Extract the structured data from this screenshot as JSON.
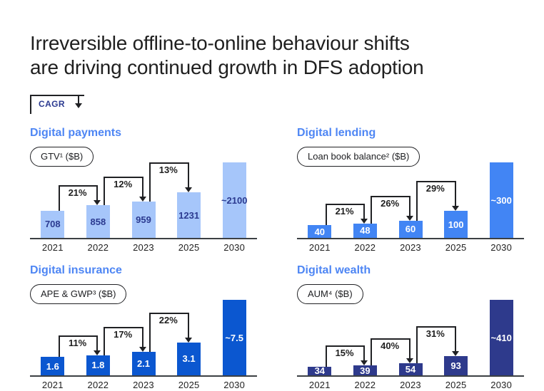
{
  "title": {
    "line1": "Irreversible offline-to-online behaviour shifts",
    "line2": "are driving continued growth in DFS adoption"
  },
  "legend": {
    "label": "CAGR"
  },
  "colors": {
    "header_blue": "#4E86F4",
    "payments_bar": "#A6C6FA",
    "payments_value_text": "#2B3A90",
    "lending_bar": "#4285F4",
    "insurance_bar": "#0B57D0",
    "wealth_bar": "#2E3A8C",
    "connector": "#202124",
    "axis": "#3C4043"
  },
  "chart_data": [
    {
      "type": "bar",
      "title": "Digital payments",
      "metric_label": "GTV¹ ($B)",
      "categories": [
        "2021",
        "2022",
        "2023",
        "2025",
        "2030"
      ],
      "values": [
        708,
        858,
        959,
        1231,
        2100
      ],
      "value_labels": [
        "708",
        "858",
        "959",
        "1231",
        "~2100"
      ],
      "cagr_labels": [
        "21%",
        "12%",
        "13%"
      ],
      "bar_color": "#A6C6FA",
      "value_label_color": "#2B3A90",
      "unit": "$B"
    },
    {
      "type": "bar",
      "title": "Digital lending",
      "metric_label": "Loan book balance² ($B)",
      "categories": [
        "2021",
        "2022",
        "2023",
        "2025",
        "2030"
      ],
      "values": [
        40,
        48,
        60,
        100,
        300
      ],
      "value_labels": [
        "40",
        "48",
        "60",
        "100",
        "~300"
      ],
      "cagr_labels": [
        "21%",
        "26%",
        "29%"
      ],
      "bar_color": "#4285F4",
      "value_label_color": "#FFFFFF",
      "unit": "$B"
    },
    {
      "type": "bar",
      "title": "Digital insurance",
      "metric_label": "APE & GWP³ ($B)",
      "categories": [
        "2021",
        "2022",
        "2023",
        "2025",
        "2030"
      ],
      "values": [
        1.6,
        1.8,
        2.1,
        3.1,
        7.5
      ],
      "value_labels": [
        "1.6",
        "1.8",
        "2.1",
        "3.1",
        "~7.5"
      ],
      "cagr_labels": [
        "11%",
        "17%",
        "22%"
      ],
      "bar_color": "#0B57D0",
      "value_label_color": "#FFFFFF",
      "unit": "$B"
    },
    {
      "type": "bar",
      "title": "Digital wealth",
      "metric_label": "AUM⁴ ($B)",
      "categories": [
        "2021",
        "2022",
        "2023",
        "2025",
        "2030"
      ],
      "values": [
        34,
        39,
        54,
        93,
        410
      ],
      "value_labels": [
        "34",
        "39",
        "54",
        "93",
        "~410"
      ],
      "cagr_labels": [
        "15%",
        "40%",
        "31%"
      ],
      "bar_color": "#2E3A8C",
      "value_label_color": "#FFFFFF",
      "unit": "$B"
    }
  ]
}
